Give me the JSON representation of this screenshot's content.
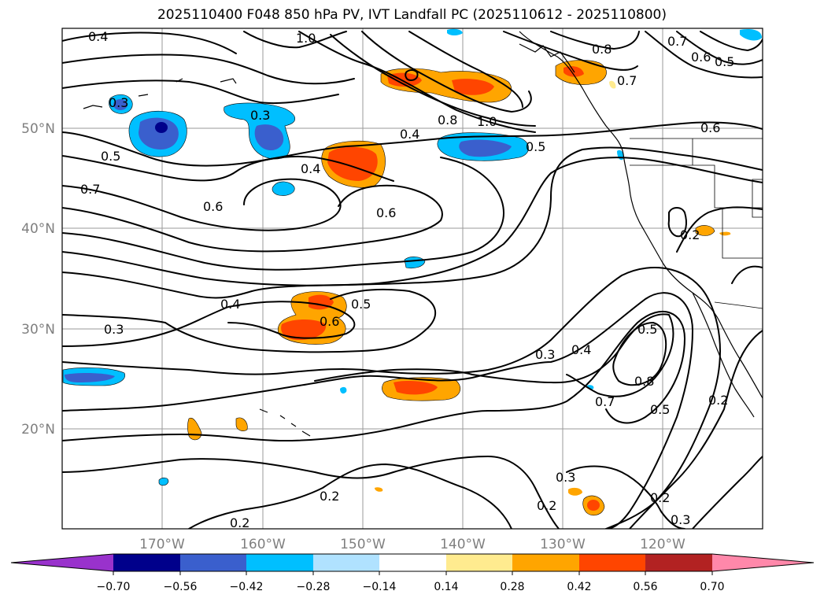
{
  "title": "2025110400 F048 850 hPa PV, IVT Landfall PC (2025110612 - 2025110800)",
  "axes": {
    "x_ticks": [
      "170°W",
      "160°W",
      "150°W",
      "140°W",
      "130°W",
      "120°W"
    ],
    "y_ticks": [
      "50°N",
      "40°N",
      "30°N",
      "20°N"
    ]
  },
  "contour_labels": [
    "0.4",
    "1.0",
    "0.8",
    "0.7",
    "0.6",
    "0.5",
    "0.7",
    "0.8",
    "1.0",
    "0.6",
    "0.3",
    "0.3",
    "0.5",
    "0.4",
    "0.5",
    "0.7",
    "0.6",
    "0.4",
    "0.6",
    "0.2",
    "0.4",
    "0.5",
    "0.6",
    "0.3",
    "0.3",
    "0.4",
    "0.5",
    "0.8",
    "0.7",
    "0.5",
    "0.2",
    "0.3",
    "0.2",
    "0.2",
    "0.2",
    "0.3",
    "0.2"
  ],
  "colorbar": {
    "ticks": [
      "−0.70",
      "−0.56",
      "−0.42",
      "−0.28",
      "−0.14",
      "0.14",
      "0.28",
      "0.42",
      "0.56",
      "0.70"
    ],
    "colors": [
      "#9932cc",
      "#00008b",
      "#3a5fcd",
      "#00bfff",
      "#b0e2ff",
      "#ffffff",
      "#ffeb8f",
      "#ffa500",
      "#ff4500",
      "#b22222",
      "#ff88aa",
      "#ff88aa"
    ]
  },
  "palette": {
    "neg_weak": "#b0e2ff",
    "neg_mid": "#00bfff",
    "neg_strong": "#3a5fcd",
    "neg_max": "#00008b",
    "pos_weak": "#ffeb8f",
    "pos_mid": "#ffa500",
    "pos_strong": "#ff4500"
  }
}
